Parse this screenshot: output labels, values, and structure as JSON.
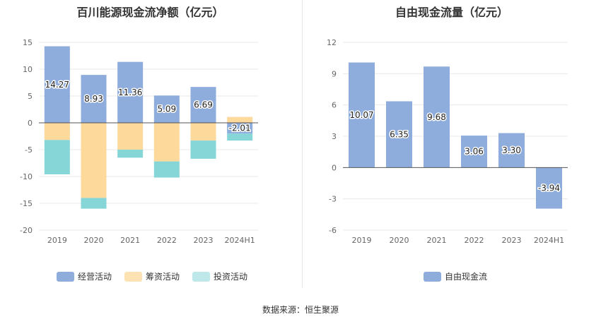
{
  "left_title": "百川能源现金流净额（亿元）",
  "right_title": "自由现金流量（亿元）",
  "source": "数据来源：恒生聚源",
  "colors": {
    "operating": "#8eacdc",
    "financing": "#fdd99b",
    "investing": "#86d6d8",
    "free_cf": "#8eacdc",
    "grid": "#e8e8e8",
    "axis": "#555555"
  },
  "legend_left": [
    {
      "label": "经营活动",
      "color": "#8eacdc"
    },
    {
      "label": "筹资活动",
      "color": "#fde3b4"
    },
    {
      "label": "投资活动",
      "color": "#bfe8ea"
    }
  ],
  "legend_right": [
    {
      "label": "自由现金流",
      "color": "#8eacdc"
    }
  ],
  "chart_data": [
    {
      "type": "bar",
      "stacked": true,
      "title": "百川能源现金流净额（亿元）",
      "categories": [
        "2019",
        "2020",
        "2021",
        "2022",
        "2023",
        "2024H1"
      ],
      "ylim": [
        -20,
        15
      ],
      "yticks": [
        15,
        10,
        5,
        0,
        -5,
        -10,
        -15,
        -20
      ],
      "series": [
        {
          "name": "经营活动",
          "values": [
            14.27,
            8.93,
            11.36,
            5.09,
            6.69,
            -2.01
          ],
          "labels": [
            "14.27",
            "8.93",
            "11.36",
            "5.09",
            "6.69",
            "-2.01"
          ]
        },
        {
          "name": "筹资活动",
          "values": [
            -3.2,
            -14.0,
            -5.0,
            -7.2,
            -3.3,
            1.1
          ]
        },
        {
          "name": "投资活动",
          "values": [
            -6.4,
            -2.0,
            -1.5,
            -3.0,
            -3.4,
            -1.3
          ]
        }
      ],
      "grid": true,
      "legend": "bottom"
    },
    {
      "type": "bar",
      "title": "自由现金流量（亿元）",
      "categories": [
        "2019",
        "2020",
        "2021",
        "2022",
        "2023",
        "2024H1"
      ],
      "ylim": [
        -6,
        12
      ],
      "yticks": [
        12,
        9,
        6,
        3,
        0,
        -3,
        -6
      ],
      "series": [
        {
          "name": "自由现金流",
          "values": [
            10.07,
            6.35,
            9.68,
            3.06,
            3.3,
            -3.94
          ],
          "labels": [
            "10.07",
            "6.35",
            "9.68",
            "3.06",
            "3.30",
            "-3.94"
          ]
        }
      ],
      "grid": true,
      "legend": "bottom"
    }
  ]
}
